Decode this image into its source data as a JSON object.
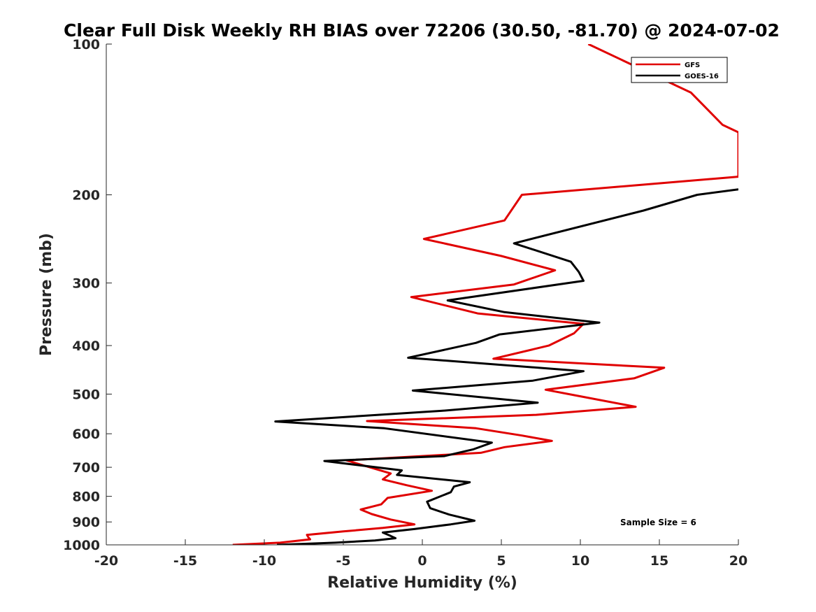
{
  "chart_data": {
    "type": "line",
    "title": "Clear Full Disk Weekly RH BIAS over 72206 (30.50, -81.70) @ 2024-07-02",
    "xlabel": "Relative Humidity (%)",
    "ylabel": "Pressure (mb)",
    "xlim": [
      -20,
      20
    ],
    "ylim": [
      100,
      1000
    ],
    "y_scale": "log",
    "y_reversed": true,
    "x_ticks": [
      "-20",
      "-15",
      "-10",
      "-5",
      "0",
      "5",
      "10",
      "15",
      "20"
    ],
    "y_ticks": [
      "100",
      "200",
      "300",
      "400",
      "500",
      "600",
      "700",
      "800",
      "900",
      "1000"
    ],
    "grid": false,
    "legend_position": "top-right",
    "annotation": "Sample Size = 6",
    "series": [
      {
        "name": "GFS",
        "color": "#e00000",
        "points": [
          [
            10.5,
            100
          ],
          [
            17.0,
            125
          ],
          [
            19.0,
            145
          ],
          [
            20.0,
            150
          ],
          [
            20.0,
            184
          ],
          [
            6.3,
            200
          ],
          [
            5.2,
            225
          ],
          [
            0.1,
            245
          ],
          [
            5.0,
            265
          ],
          [
            8.4,
            283
          ],
          [
            5.8,
            302
          ],
          [
            -0.7,
            320
          ],
          [
            3.5,
            345
          ],
          [
            10.2,
            362
          ],
          [
            9.6,
            378
          ],
          [
            8.0,
            400
          ],
          [
            4.5,
            425
          ],
          [
            15.3,
            443
          ],
          [
            13.4,
            465
          ],
          [
            7.8,
            490
          ],
          [
            10.0,
            505
          ],
          [
            13.5,
            530
          ],
          [
            7.2,
            550
          ],
          [
            -3.5,
            566
          ],
          [
            3.4,
            585
          ],
          [
            6.3,
            605
          ],
          [
            8.2,
            620
          ],
          [
            5.2,
            638
          ],
          [
            3.7,
            655
          ],
          [
            -4.8,
            678
          ],
          [
            -2.0,
            720
          ],
          [
            -2.5,
            740
          ],
          [
            -1.0,
            760
          ],
          [
            0.6,
            780
          ],
          [
            -2.2,
            806
          ],
          [
            -2.6,
            830
          ],
          [
            -3.9,
            850
          ],
          [
            -3.2,
            868
          ],
          [
            -2.0,
            890
          ],
          [
            -0.5,
            910
          ],
          [
            -2.5,
            925
          ],
          [
            -5.0,
            940
          ],
          [
            -7.3,
            955
          ],
          [
            -7.2,
            967
          ],
          [
            -7.1,
            975
          ],
          [
            -9.0,
            990
          ],
          [
            -12.0,
            1000
          ]
        ]
      },
      {
        "name": "GOES-16",
        "color": "#000000",
        "points": [
          [
            20.0,
            195
          ],
          [
            17.4,
            200
          ],
          [
            14.0,
            215
          ],
          [
            5.8,
            250
          ],
          [
            9.4,
            272
          ],
          [
            9.9,
            285
          ],
          [
            10.2,
            297
          ],
          [
            1.6,
            325
          ],
          [
            5.2,
            343
          ],
          [
            11.2,
            360
          ],
          [
            4.9,
            380
          ],
          [
            3.4,
            395
          ],
          [
            -0.9,
            423
          ],
          [
            10.2,
            450
          ],
          [
            7.0,
            470
          ],
          [
            -0.6,
            492
          ],
          [
            7.3,
            520
          ],
          [
            1.2,
            540
          ],
          [
            -9.3,
            567
          ],
          [
            -2.4,
            585
          ],
          [
            4.4,
            625
          ],
          [
            3.2,
            645
          ],
          [
            1.4,
            665
          ],
          [
            -6.2,
            680
          ],
          [
            -1.3,
            710
          ],
          [
            -1.6,
            725
          ],
          [
            3.0,
            750
          ],
          [
            2.0,
            765
          ],
          [
            1.8,
            785
          ],
          [
            0.3,
            820
          ],
          [
            0.5,
            845
          ],
          [
            1.7,
            870
          ],
          [
            3.3,
            895
          ],
          [
            1.8,
            910
          ],
          [
            -0.5,
            930
          ],
          [
            -2.5,
            945
          ],
          [
            -2.0,
            960
          ],
          [
            -1.7,
            970
          ],
          [
            -3.0,
            980
          ],
          [
            -5.5,
            990
          ],
          [
            -9.2,
            1000
          ]
        ]
      }
    ]
  }
}
